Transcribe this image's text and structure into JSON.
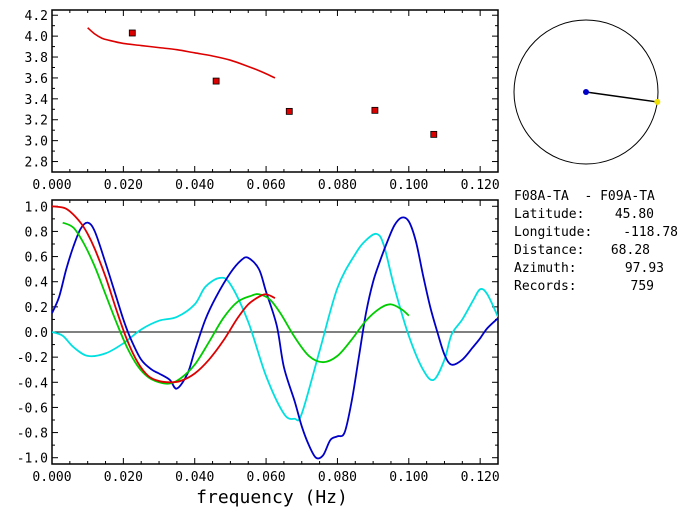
{
  "chart_data": [
    {
      "type": "scatter",
      "xlim": [
        0.0,
        0.125
      ],
      "ylim": [
        2.7,
        4.25
      ],
      "xticks": [
        "0.000",
        "0.020",
        "0.040",
        "0.060",
        "0.080",
        "0.100",
        "0.120"
      ],
      "yticks": [
        "2.8",
        "3.0",
        "3.2",
        "3.4",
        "3.6",
        "3.8",
        "4.0",
        "4.2"
      ],
      "points": [
        {
          "x": 0.0225,
          "y": 4.03
        },
        {
          "x": 0.046,
          "y": 3.57
        },
        {
          "x": 0.0665,
          "y": 3.28
        },
        {
          "x": 0.0905,
          "y": 3.29
        },
        {
          "x": 0.107,
          "y": 3.06
        }
      ],
      "curve": {
        "color": "#dd0000",
        "x": [
          0.01,
          0.012,
          0.014,
          0.016,
          0.02,
          0.025,
          0.03,
          0.035,
          0.04,
          0.045,
          0.05,
          0.055,
          0.058,
          0.06,
          0.0625
        ],
        "y": [
          4.08,
          4.02,
          3.98,
          3.96,
          3.93,
          3.91,
          3.89,
          3.87,
          3.84,
          3.81,
          3.77,
          3.71,
          3.67,
          3.64,
          3.6
        ]
      }
    },
    {
      "type": "line",
      "xlabel": "frequency (Hz)",
      "xlim": [
        0.0,
        0.125
      ],
      "ylim": [
        -1.05,
        1.05
      ],
      "xticks": [
        "0.000",
        "0.020",
        "0.040",
        "0.060",
        "0.080",
        "0.100",
        "0.120"
      ],
      "yticks": [
        "1.0",
        "0.8",
        "0.6",
        "0.4",
        "0.2",
        "0.0",
        "-0.2",
        "-0.4",
        "-0.6",
        "-0.8",
        "-1.0"
      ],
      "zero_line": true,
      "series": [
        {
          "color": "#00e0e0",
          "x": [
            0.0,
            0.003,
            0.006,
            0.01,
            0.015,
            0.02,
            0.025,
            0.03,
            0.035,
            0.04,
            0.043,
            0.047,
            0.05,
            0.055,
            0.06,
            0.065,
            0.068,
            0.07,
            0.075,
            0.08,
            0.085,
            0.088,
            0.091,
            0.093,
            0.096,
            0.1,
            0.104,
            0.107,
            0.11,
            0.112,
            0.115,
            0.118,
            0.12,
            0.122,
            0.125
          ],
          "y": [
            0.0,
            -0.03,
            -0.12,
            -0.19,
            -0.17,
            -0.09,
            0.02,
            0.09,
            0.12,
            0.22,
            0.36,
            0.43,
            0.38,
            0.08,
            -0.35,
            -0.65,
            -0.69,
            -0.65,
            -0.15,
            0.35,
            0.62,
            0.73,
            0.78,
            0.69,
            0.35,
            -0.03,
            -0.3,
            -0.38,
            -0.22,
            -0.02,
            0.1,
            0.25,
            0.34,
            0.3,
            0.12
          ]
        },
        {
          "color": "#0000c8",
          "x": [
            0.0,
            0.002,
            0.004,
            0.006,
            0.008,
            0.01,
            0.012,
            0.015,
            0.018,
            0.02,
            0.022,
            0.025,
            0.028,
            0.03,
            0.033,
            0.035,
            0.038,
            0.04,
            0.043,
            0.046,
            0.05,
            0.053,
            0.055,
            0.058,
            0.06,
            0.063,
            0.065,
            0.068,
            0.07,
            0.072,
            0.074,
            0.076,
            0.078,
            0.08,
            0.082,
            0.084,
            0.086,
            0.088,
            0.09,
            0.092,
            0.094,
            0.096,
            0.098,
            0.1,
            0.102,
            0.104,
            0.106,
            0.108,
            0.11,
            0.112,
            0.115,
            0.118,
            0.12,
            0.122,
            0.125
          ],
          "y": [
            0.15,
            0.28,
            0.5,
            0.68,
            0.82,
            0.87,
            0.8,
            0.55,
            0.28,
            0.1,
            -0.05,
            -0.22,
            -0.3,
            -0.33,
            -0.38,
            -0.45,
            -0.33,
            -0.15,
            0.1,
            0.28,
            0.47,
            0.57,
            0.59,
            0.5,
            0.32,
            0.05,
            -0.28,
            -0.55,
            -0.75,
            -0.9,
            -1.0,
            -0.98,
            -0.86,
            -0.83,
            -0.8,
            -0.55,
            -0.2,
            0.15,
            0.4,
            0.57,
            0.72,
            0.85,
            0.91,
            0.88,
            0.72,
            0.45,
            0.2,
            0.0,
            -0.18,
            -0.26,
            -0.22,
            -0.12,
            -0.05,
            0.03,
            0.11
          ]
        },
        {
          "color": "#00cc00",
          "x": [
            0.003,
            0.006,
            0.009,
            0.012,
            0.015,
            0.018,
            0.021,
            0.024,
            0.027,
            0.03,
            0.033,
            0.036,
            0.04,
            0.044,
            0.048,
            0.052,
            0.056,
            0.058,
            0.061,
            0.064,
            0.068,
            0.072,
            0.076,
            0.08,
            0.084,
            0.088,
            0.092,
            0.095,
            0.098,
            0.1
          ],
          "y": [
            0.87,
            0.83,
            0.7,
            0.52,
            0.3,
            0.08,
            -0.12,
            -0.27,
            -0.36,
            -0.4,
            -0.41,
            -0.37,
            -0.26,
            -0.08,
            0.11,
            0.24,
            0.29,
            0.3,
            0.26,
            0.15,
            -0.04,
            -0.19,
            -0.24,
            -0.19,
            -0.06,
            0.09,
            0.19,
            0.22,
            0.18,
            0.13
          ]
        },
        {
          "color": "#dd0000",
          "x": [
            0.0,
            0.003,
            0.005,
            0.008,
            0.01,
            0.012,
            0.015,
            0.018,
            0.021,
            0.024,
            0.027,
            0.03,
            0.033,
            0.036,
            0.04,
            0.044,
            0.048,
            0.052,
            0.055,
            0.058,
            0.06,
            0.0625
          ],
          "y": [
            1.0,
            0.99,
            0.96,
            0.87,
            0.78,
            0.66,
            0.44,
            0.18,
            -0.06,
            -0.24,
            -0.35,
            -0.39,
            -0.4,
            -0.39,
            -0.33,
            -0.22,
            -0.07,
            0.11,
            0.22,
            0.28,
            0.3,
            0.27
          ]
        }
      ]
    }
  ],
  "azimuth_marker": {
    "azimuth_deg": 97.93
  },
  "info": {
    "stations": "F08A-TA  - F09A-TA",
    "lines": [
      {
        "label": "Latitude:",
        "value": "45.80"
      },
      {
        "label": "Longitude:",
        "value": "-118.78"
      },
      {
        "label": "Distance:",
        "value": "68.28"
      },
      {
        "label": "Azimuth:",
        "value": "97.93"
      },
      {
        "label": "Records:",
        "value": "759"
      }
    ]
  }
}
